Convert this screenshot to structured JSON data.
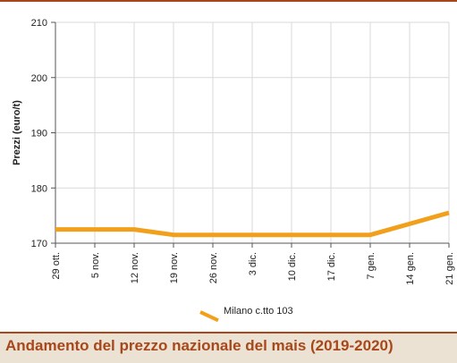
{
  "caption": "Andamento del prezzo nazionale del mais (2019-2020)",
  "chart_data": {
    "type": "line",
    "xlabel": "",
    "ylabel": "Prezzi (euro/t)",
    "categories": [
      "29 ott.",
      "5 nov.",
      "12 nov.",
      "19 nov.",
      "26 nov.",
      "3 dic.",
      "10 dic.",
      "17 dic.",
      "7 gen.",
      "14 gen.",
      "21 gen."
    ],
    "yticks": [
      170,
      180,
      190,
      200,
      210
    ],
    "ylim": [
      170,
      210
    ],
    "grid": true,
    "legend_position": "bottom",
    "series": [
      {
        "name": "Milano  c.tto 103",
        "color": "#f2a01c",
        "values": [
          172.5,
          172.5,
          172.5,
          171.5,
          171.5,
          171.5,
          171.5,
          171.5,
          171.5,
          173.5,
          175.5
        ]
      }
    ]
  }
}
